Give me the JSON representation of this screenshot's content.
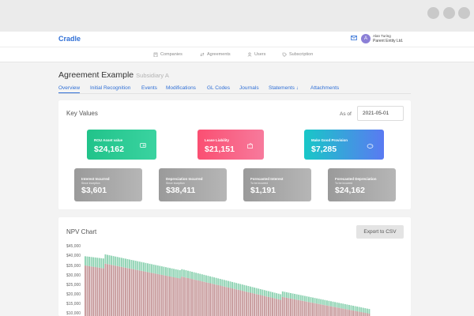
{
  "app": {
    "brand": "Cradle",
    "user": {
      "name": "Alan Turing",
      "entity": "Parent Entity Ltd.",
      "initial": "A"
    }
  },
  "nav": [
    {
      "label": "Companies",
      "icon": "building-icon"
    },
    {
      "label": "Agreements",
      "icon": "swap-icon"
    },
    {
      "label": "Users",
      "icon": "users-icon"
    },
    {
      "label": "Subscription",
      "icon": "tag-icon"
    }
  ],
  "page": {
    "title": "Agreement Example",
    "subtitle": "Subsidiary A"
  },
  "tabs": [
    "Overview",
    "Initial Recognition",
    "Events",
    "Modifications",
    "GL Codes",
    "Journals",
    "Statements ↓",
    "Attachments"
  ],
  "key_values": {
    "title": "Key Values",
    "as_of_label": "As of",
    "as_of_value": "2021-05-01",
    "top": [
      {
        "label": "ROU Asset value",
        "value": "$24,162",
        "icon": "asset-icon",
        "color": "#2ecc8e"
      },
      {
        "label": "Lease Liability",
        "value": "$21,151",
        "icon": "liability-icon",
        "color": "#f5527a"
      },
      {
        "label": "Make Good Provision",
        "value": "$7,285",
        "icon": "piggy-bank-icon",
        "color": "#4a7ef0"
      }
    ],
    "bottom": [
      {
        "label": "Interest Incurred",
        "sub": "Since inception",
        "value": "$3,601"
      },
      {
        "label": "Depreciation Incurred",
        "sub": "Since inception",
        "value": "$38,411"
      },
      {
        "label": "Forecasted Interest",
        "sub": "To be incurred",
        "value": "$1,191"
      },
      {
        "label": "Forecasted Depreciation",
        "sub": "To be incurred",
        "value": "$24,162"
      }
    ]
  },
  "npv": {
    "title": "NPV Chart",
    "export_label": "Export to CSV"
  },
  "chart_data": {
    "type": "bar",
    "stacked": true,
    "y_ticks": [
      "$45,000",
      "$40,000",
      "$35,000",
      "$30,000",
      "$25,000",
      "$20,000",
      "$15,000",
      "$10,000"
    ],
    "ylim": [
      10000,
      45000
    ],
    "series": [
      {
        "name": "",
        "color": "#c79a9c"
      },
      {
        "name": "",
        "color": "#8fd3b3"
      }
    ],
    "segments": [
      {
        "from_index": 0,
        "to_index": 9,
        "base_start": 36000,
        "base_end": 34500,
        "top_start": 41000,
        "top_end": 39800
      },
      {
        "from_index": 10,
        "to_index": 47,
        "base_start": 37000,
        "base_end": 29000,
        "top_start": 42000,
        "top_end": 33500
      },
      {
        "from_index": 48,
        "to_index": 97,
        "base_start": 30000,
        "base_end": 17500,
        "top_start": 34000,
        "top_end": 20500
      },
      {
        "from_index": 98,
        "to_index": 141,
        "base_start": 19000,
        "base_end": 10000,
        "top_start": 22000,
        "top_end": 12500
      }
    ],
    "bar_count": 142
  }
}
